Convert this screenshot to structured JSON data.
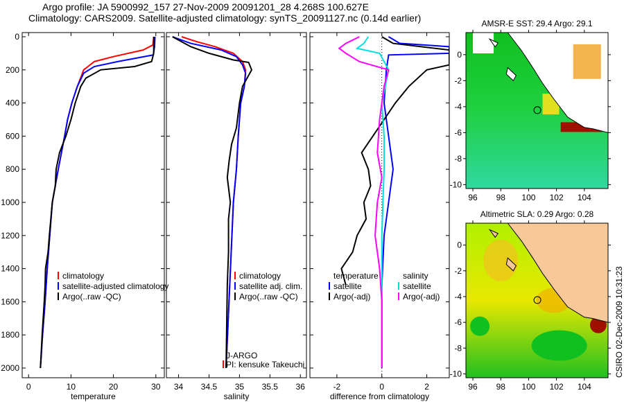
{
  "header": {
    "line1": "Argo profile: JA 5900992_157 27-Nov-2009 20091201_28 4.268S 100.627E",
    "line2": "Climatology: CARS2009. Satellite-adjusted climatology: synTS_20091127.nc (0.14d earlier)"
  },
  "credit": "CSIRO 02-Dec-2009 10:31:23",
  "chart_data": [
    {
      "type": "line",
      "xlabel": "temperature",
      "xlim": [
        -1.5,
        32
      ],
      "ylim": [
        2060,
        0
      ],
      "xticks": [
        0,
        10,
        20,
        30
      ],
      "yticks": [
        0,
        200,
        400,
        600,
        800,
        1000,
        1200,
        1400,
        1600,
        1800,
        2000
      ],
      "legend": [
        "climatology",
        "satellite-adjusted climatology",
        "Argo(..raw -QC)"
      ],
      "series": [
        {
          "name": "climatology",
          "color": "#ff0000",
          "points": [
            [
              0,
              29.5
            ],
            [
              50,
              29.3
            ],
            [
              80,
              27
            ],
            [
              120,
              20
            ],
            [
              150,
              15.5
            ],
            [
              200,
              13
            ],
            [
              300,
              11.5
            ],
            [
              400,
              10.2
            ],
            [
              500,
              9.2
            ],
            [
              600,
              8.5
            ],
            [
              800,
              7
            ],
            [
              1000,
              5.6
            ],
            [
              1200,
              5
            ],
            [
              1400,
              4.4
            ],
            [
              1600,
              3.9
            ],
            [
              1800,
              3.3
            ],
            [
              2000,
              2.8
            ]
          ]
        },
        {
          "name": "satellite-adjusted climatology",
          "color": "#0000ff",
          "points": [
            [
              0,
              29.8
            ],
            [
              60,
              29.7
            ],
            [
              110,
              29.4
            ],
            [
              150,
              21
            ],
            [
              180,
              15.5
            ],
            [
              220,
              13
            ],
            [
              300,
              11.5
            ],
            [
              400,
              10.2
            ],
            [
              500,
              9.2
            ],
            [
              600,
              8.5
            ],
            [
              800,
              7
            ],
            [
              1000,
              5.6
            ],
            [
              1200,
              5
            ],
            [
              1400,
              4.4
            ],
            [
              1600,
              3.9
            ],
            [
              1800,
              3.3
            ],
            [
              2000,
              2.8
            ]
          ]
        },
        {
          "name": "Argo(..raw -QC)",
          "color": "#000000",
          "points": [
            [
              0,
              29.5
            ],
            [
              100,
              29.5
            ],
            [
              150,
              29
            ],
            [
              180,
              25
            ],
            [
              200,
              17
            ],
            [
              250,
              13.5
            ],
            [
              300,
              12.3
            ],
            [
              400,
              11
            ],
            [
              500,
              10
            ],
            [
              600,
              8.8
            ],
            [
              700,
              7.3
            ],
            [
              800,
              6.5
            ],
            [
              900,
              6.3
            ],
            [
              1000,
              5.6
            ],
            [
              1200,
              4.9
            ],
            [
              1300,
              4.6
            ],
            [
              1400,
              4
            ],
            [
              1500,
              3.9
            ],
            [
              1600,
              3.7
            ],
            [
              1800,
              3.2
            ],
            [
              2000,
              2.8
            ]
          ]
        }
      ]
    },
    {
      "type": "line",
      "xlabel": "salinity",
      "xlim": [
        33.8,
        36.1
      ],
      "ylim": [
        2060,
        0
      ],
      "xticks": [
        34,
        34.5,
        35,
        35.5,
        36
      ],
      "legend": [
        "climatology",
        "satellite adj. clim.",
        "Argo(..raw -QC)"
      ],
      "annotation": [
        "J-ARGO",
        "PI: kensuke Takeuchi"
      ],
      "series": [
        {
          "name": "climatology",
          "color": "#ff0000",
          "points": [
            [
              0,
              34.05
            ],
            [
              30,
              34.3
            ],
            [
              60,
              34.6
            ],
            [
              100,
              34.9
            ],
            [
              150,
              35.05
            ],
            [
              200,
              35.1
            ],
            [
              300,
              35.08
            ],
            [
              400,
              35.02
            ],
            [
              600,
              34.98
            ],
            [
              800,
              34.95
            ],
            [
              1000,
              34.9
            ],
            [
              1500,
              34.84
            ],
            [
              2000,
              34.78
            ]
          ]
        },
        {
          "name": "satellite adj. clim.",
          "color": "#0000ff",
          "points": [
            [
              0,
              33.9
            ],
            [
              40,
              34.2
            ],
            [
              80,
              34.7
            ],
            [
              120,
              34.95
            ],
            [
              170,
              35.05
            ],
            [
              220,
              35.1
            ],
            [
              300,
              35.08
            ],
            [
              400,
              35.02
            ],
            [
              600,
              34.98
            ],
            [
              800,
              34.95
            ],
            [
              1000,
              34.9
            ],
            [
              1500,
              34.84
            ],
            [
              2000,
              34.78
            ]
          ]
        },
        {
          "name": "Argo(..raw -QC)",
          "color": "#000000",
          "points": [
            [
              0,
              33.9
            ],
            [
              60,
              34.2
            ],
            [
              100,
              34.5
            ],
            [
              140,
              34.9
            ],
            [
              155,
              35.15
            ],
            [
              200,
              35.2
            ],
            [
              300,
              35.05
            ],
            [
              400,
              35.0
            ],
            [
              550,
              34.95
            ],
            [
              650,
              34.87
            ],
            [
              750,
              34.83
            ],
            [
              850,
              34.8
            ],
            [
              1000,
              34.85
            ],
            [
              1100,
              34.82
            ],
            [
              1300,
              34.82
            ],
            [
              1500,
              34.8
            ],
            [
              2000,
              34.78
            ]
          ]
        }
      ]
    },
    {
      "type": "line",
      "xlabel": "difference from climatology",
      "xlim": [
        -3.2,
        3
      ],
      "ylim": [
        2060,
        0
      ],
      "xticks": [
        -2,
        0,
        2
      ],
      "legend": {
        "temperature": [
          "temperature",
          "satellite",
          "Argo(-adj)"
        ],
        "salinity": [
          "salinity",
          "satellite",
          "Argo(-adj)"
        ]
      },
      "series": [
        {
          "name": "temperature satellite",
          "color": "#0000ff",
          "points": [
            [
              0,
              0.3
            ],
            [
              40,
              0.8
            ],
            [
              60,
              3
            ],
            [
              100,
              3
            ],
            [
              110,
              0.3
            ],
            [
              200,
              0.2
            ],
            [
              400,
              0.1
            ],
            [
              600,
              0.3
            ],
            [
              800,
              0.5
            ],
            [
              1000,
              0.3
            ],
            [
              1200,
              0.1
            ],
            [
              1500,
              0
            ],
            [
              2000,
              0
            ]
          ]
        },
        {
          "name": "temperature Argo(-adj)",
          "color": "#000000",
          "points": [
            [
              0,
              0
            ],
            [
              40,
              0.5
            ],
            [
              80,
              3
            ],
            [
              170,
              3
            ],
            [
              200,
              2
            ],
            [
              300,
              1.2
            ],
            [
              400,
              0.6
            ],
            [
              500,
              0.1
            ],
            [
              600,
              -0.4
            ],
            [
              700,
              -0.9
            ],
            [
              800,
              -0.6
            ],
            [
              900,
              -0.5
            ],
            [
              1000,
              -0.8
            ],
            [
              1100,
              -0.7
            ],
            [
              1200,
              -1.1
            ],
            [
              1300,
              -1.3
            ],
            [
              1400,
              -1.8
            ],
            [
              1500,
              -1.6
            ]
          ]
        },
        {
          "name": "salinity satellite",
          "color": "#00e0e0",
          "points": [
            [
              0,
              -0.6
            ],
            [
              40,
              -0.8
            ],
            [
              70,
              -1.1
            ],
            [
              100,
              -0.1
            ],
            [
              200,
              0.3
            ],
            [
              400,
              0
            ],
            [
              600,
              0.1
            ],
            [
              800,
              0.1
            ],
            [
              1000,
              0.05
            ],
            [
              1200,
              0
            ],
            [
              1600,
              0
            ],
            [
              2000,
              0
            ]
          ]
        },
        {
          "name": "salinity Argo(-adj)",
          "color": "#ff00ff",
          "points": [
            [
              0,
              -1
            ],
            [
              40,
              -1.6
            ],
            [
              70,
              -1.9
            ],
            [
              100,
              -1.6
            ],
            [
              150,
              -1
            ],
            [
              200,
              0.3
            ],
            [
              300,
              0.1
            ],
            [
              500,
              -0.1
            ],
            [
              700,
              -0.2
            ],
            [
              850,
              0
            ],
            [
              1000,
              -0.2
            ],
            [
              1200,
              -0.3
            ],
            [
              1400,
              -0.1
            ],
            [
              1600,
              0
            ],
            [
              2000,
              0
            ]
          ]
        }
      ]
    },
    {
      "type": "heatmap",
      "title": "AMSR-E SST: 29.4 Argo: 29.1",
      "xlim": [
        95.5,
        105.7
      ],
      "ylim": [
        -10.3,
        1.7
      ],
      "xticks": [
        96,
        98,
        100,
        102,
        104
      ],
      "yticks": [
        0,
        -2,
        -4,
        -6,
        -8,
        -10
      ],
      "argo_position": [
        100.627,
        -4.268
      ]
    },
    {
      "type": "heatmap",
      "title": "Altimetric SLA: 0.29 Argo: 0.28",
      "xlim": [
        95.5,
        105.7
      ],
      "ylim": [
        -10.3,
        1.7
      ],
      "xticks": [
        96,
        98,
        100,
        102,
        104
      ],
      "yticks": [
        0,
        -2,
        -4,
        -6,
        -8,
        -10
      ],
      "argo_position": [
        100.627,
        -4.268
      ]
    }
  ]
}
